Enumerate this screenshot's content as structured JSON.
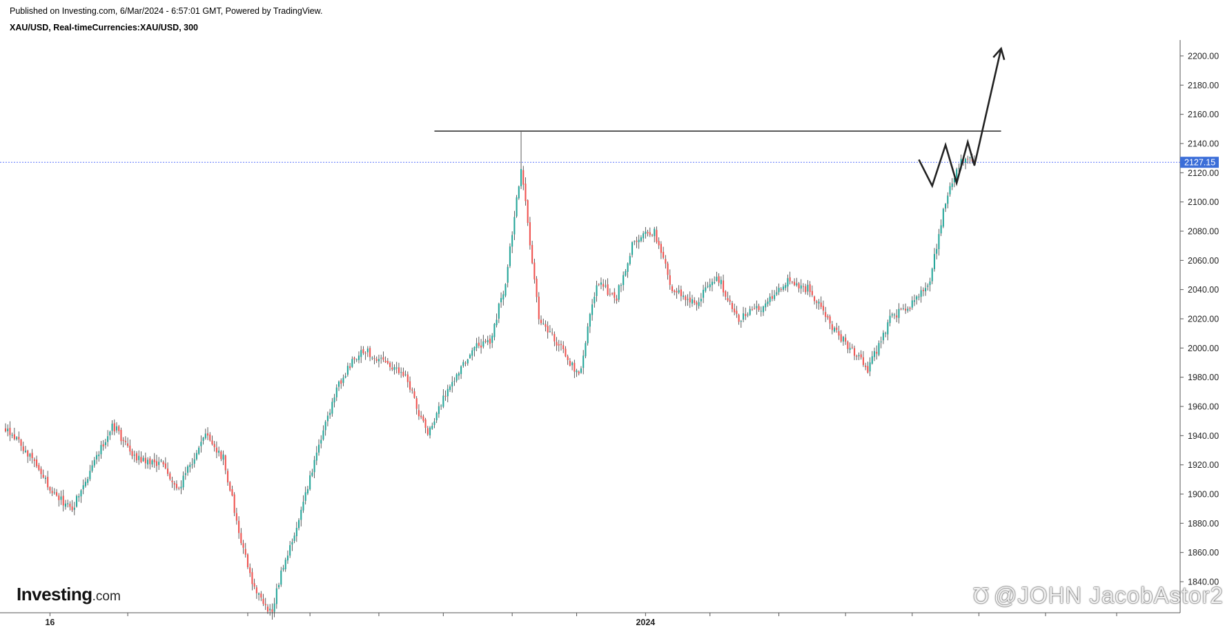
{
  "header": {
    "published": "Published on Investing.com, 6/Mar/2024 - 6:57:01 GMT, Powered by TradingView.",
    "symbol": "XAU/USD, Real-timeCurrencies:XAU/USD, 300"
  },
  "logo": {
    "brand": "Investing",
    "suffix": ".com"
  },
  "watermark": {
    "icon": "weibo-icon",
    "text": "@JOHN JacobAstor2"
  },
  "colors": {
    "up": "#26a69a",
    "down": "#ef5350",
    "price_line": "#3d5afe",
    "price_badge": "#3b6ed8",
    "drawing": "#222222",
    "axis": "#555555"
  },
  "chart_data": {
    "type": "candlestick",
    "symbol": "XAU/USD",
    "interval": "300",
    "ylim": [
      1816,
      2210
    ],
    "yticks": [
      1840,
      1860,
      1880,
      1900,
      1920,
      1940,
      1960,
      1980,
      2000,
      2020,
      2040,
      2060,
      2080,
      2100,
      2120,
      2140,
      2160,
      2180,
      2200
    ],
    "ytick_labels": [
      "1840.00",
      "1860.00",
      "1880.00",
      "1900.00",
      "1920.00",
      "1940.00",
      "1960.00",
      "1980.00",
      "2000.00",
      "2020.00",
      "2040.00",
      "2060.00",
      "2080.00",
      "2100.00",
      "2120.00",
      "2140.00",
      "2160.00",
      "2180.00",
      "2200.00"
    ],
    "xticks": [
      {
        "label": "16",
        "i": 20
      },
      {
        "label": "",
        "i": 55
      },
      {
        "label": "",
        "i": 109
      },
      {
        "label": "",
        "i": 137
      },
      {
        "label": "",
        "i": 168
      },
      {
        "label": "",
        "i": 197
      },
      {
        "label": "",
        "i": 228
      },
      {
        "label": "",
        "i": 257
      },
      {
        "label": "2024",
        "i": 288
      },
      {
        "label": "",
        "i": 317
      },
      {
        "label": "",
        "i": 348
      },
      {
        "label": "",
        "i": 378
      },
      {
        "label": "",
        "i": 408
      },
      {
        "label": "",
        "i": 438
      },
      {
        "label": "",
        "i": 468
      },
      {
        "label": "",
        "i": 500
      }
    ],
    "n_bars": 520,
    "last_price": 2127.15,
    "last_price_label": "2127.15",
    "close_path": [
      [
        0,
        1945
      ],
      [
        12,
        1925
      ],
      [
        22,
        1900
      ],
      [
        30,
        1890
      ],
      [
        38,
        1915
      ],
      [
        48,
        1948
      ],
      [
        58,
        1925
      ],
      [
        70,
        1920
      ],
      [
        78,
        1905
      ],
      [
        90,
        1940
      ],
      [
        98,
        1925
      ],
      [
        105,
        1875
      ],
      [
        112,
        1835
      ],
      [
        120,
        1818
      ],
      [
        124,
        1848
      ],
      [
        132,
        1880
      ],
      [
        140,
        1930
      ],
      [
        150,
        1975
      ],
      [
        160,
        2000
      ],
      [
        170,
        1990
      ],
      [
        180,
        1980
      ],
      [
        190,
        1940
      ],
      [
        200,
        1975
      ],
      [
        210,
        2000
      ],
      [
        218,
        2005
      ],
      [
        225,
        2045
      ],
      [
        232,
        2125
      ],
      [
        240,
        2020
      ],
      [
        250,
        2000
      ],
      [
        258,
        1980
      ],
      [
        266,
        2045
      ],
      [
        275,
        2035
      ],
      [
        283,
        2075
      ],
      [
        292,
        2080
      ],
      [
        300,
        2040
      ],
      [
        310,
        2030
      ],
      [
        320,
        2050
      ],
      [
        330,
        2020
      ],
      [
        342,
        2030
      ],
      [
        352,
        2045
      ],
      [
        362,
        2040
      ],
      [
        372,
        2015
      ],
      [
        380,
        2000
      ],
      [
        388,
        1985
      ],
      [
        398,
        2020
      ],
      [
        408,
        2030
      ],
      [
        416,
        2045
      ],
      [
        422,
        2095
      ],
      [
        430,
        2130
      ],
      [
        436,
        2127
      ]
    ],
    "resistance": {
      "value": 2148.5,
      "i_start": 193,
      "i_end": 448
    },
    "projection": [
      [
        411,
        2129
      ],
      [
        417,
        2111
      ],
      [
        423,
        2139
      ],
      [
        428,
        2113
      ],
      [
        433,
        2141
      ],
      [
        436,
        2125
      ],
      [
        448,
        2205
      ]
    ]
  }
}
